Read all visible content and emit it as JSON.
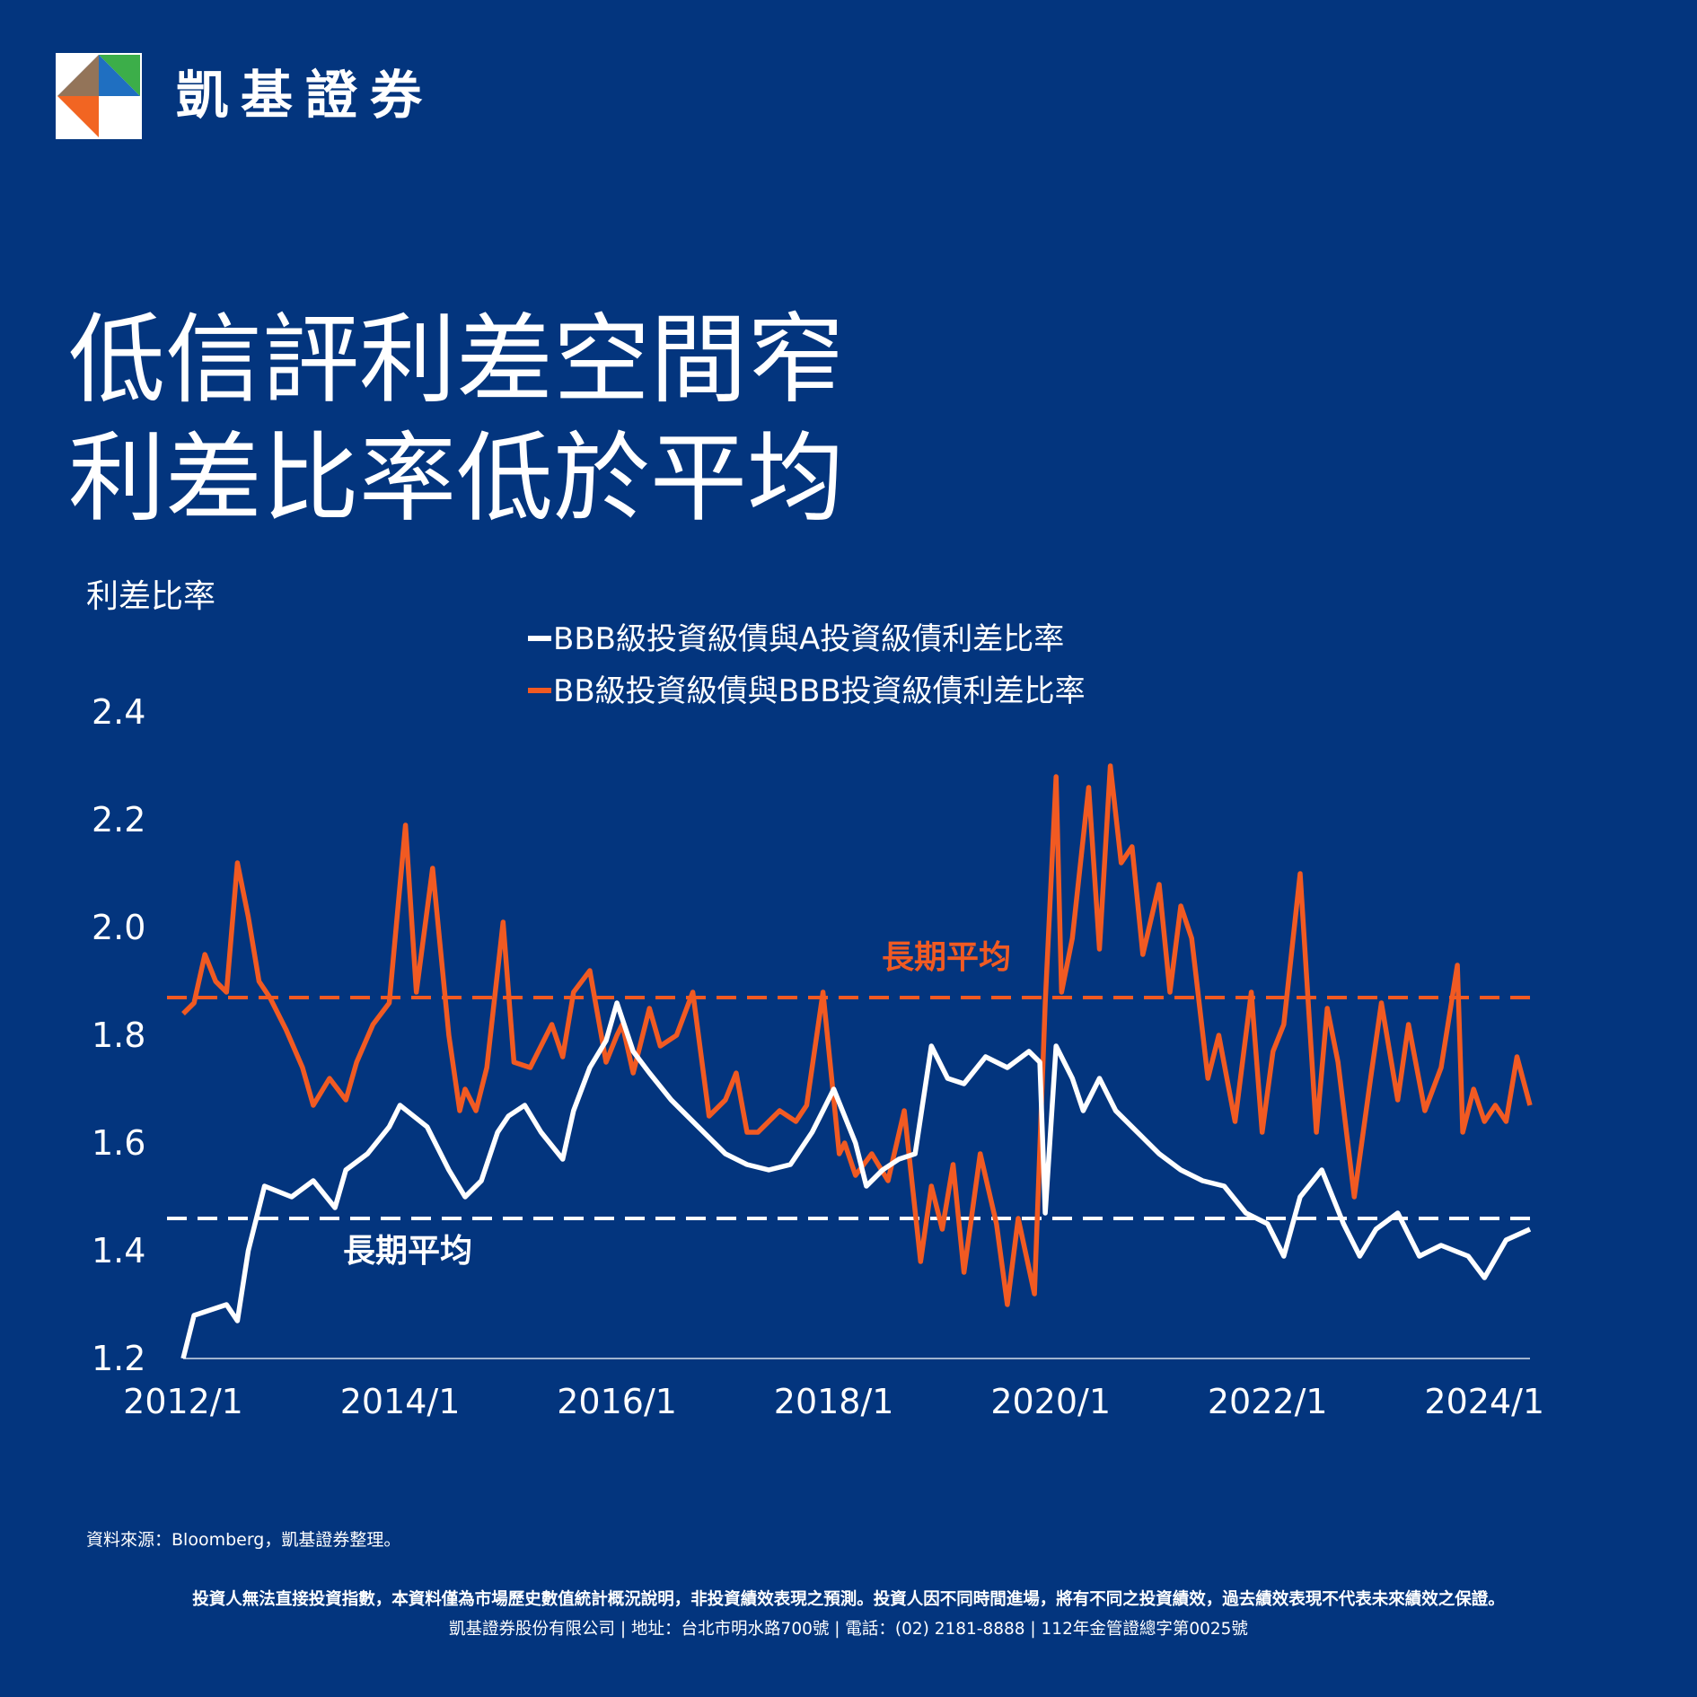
{
  "brand": {
    "name": "凱基證券",
    "logo_icon": "kgi-diamond-logo-icon",
    "colors": {
      "green": "#3cae49",
      "blue": "#1f6fc1",
      "orange": "#f26522",
      "white": "#ffffff"
    }
  },
  "headline": {
    "line1": "低信評利差空間窄",
    "line2": "利差比率低於平均"
  },
  "chart_data": {
    "type": "line",
    "ylabel": "利差比率",
    "ylim": [
      1.2,
      2.4
    ],
    "xlim": [
      2012.0,
      2024.42
    ],
    "y_ticks": [
      "1.2",
      "1.4",
      "1.6",
      "1.8",
      "2.0",
      "2.2",
      "2.4"
    ],
    "x_ticks": [
      "2012/1",
      "2014/1",
      "2016/1",
      "2018/1",
      "2020/1",
      "2022/1",
      "2024/1"
    ],
    "grid": false,
    "legend_position": "top-center",
    "background_color": "#03357e",
    "series": [
      {
        "name": "BBB級投資級債與A投資級債利差比率",
        "color": "#ffffff",
        "long_term_average": 1.46,
        "average_label": "長期平均",
        "x": [
          2012.0,
          2012.1,
          2012.25,
          2012.4,
          2012.5,
          2012.6,
          2012.75,
          2013.0,
          2013.2,
          2013.4,
          2013.5,
          2013.7,
          2013.9,
          2014.0,
          2014.25,
          2014.45,
          2014.6,
          2014.75,
          2014.9,
          2015.0,
          2015.15,
          2015.3,
          2015.5,
          2015.6,
          2015.75,
          2015.9,
          2016.0,
          2016.15,
          2016.3,
          2016.5,
          2016.7,
          2016.9,
          2017.0,
          2017.2,
          2017.4,
          2017.6,
          2017.8,
          2017.9,
          2018.0,
          2018.2,
          2018.3,
          2018.45,
          2018.6,
          2018.75,
          2018.9,
          2019.05,
          2019.2,
          2019.4,
          2019.6,
          2019.8,
          2019.9,
          2019.95,
          2020.05,
          2020.2,
          2020.3,
          2020.45,
          2020.6,
          2020.8,
          2021.0,
          2021.2,
          2021.4,
          2021.6,
          2021.8,
          2022.0,
          2022.15,
          2022.3,
          2022.5,
          2022.7,
          2022.85,
          2023.0,
          2023.2,
          2023.4,
          2023.6,
          2023.85,
          2024.0,
          2024.2,
          2024.42
        ],
        "values": [
          1.2,
          1.28,
          1.29,
          1.3,
          1.27,
          1.4,
          1.52,
          1.5,
          1.53,
          1.48,
          1.55,
          1.58,
          1.63,
          1.67,
          1.63,
          1.55,
          1.5,
          1.53,
          1.62,
          1.65,
          1.67,
          1.62,
          1.57,
          1.66,
          1.74,
          1.79,
          1.86,
          1.77,
          1.73,
          1.68,
          1.64,
          1.6,
          1.58,
          1.56,
          1.55,
          1.56,
          1.62,
          1.66,
          1.7,
          1.6,
          1.52,
          1.55,
          1.57,
          1.58,
          1.78,
          1.72,
          1.71,
          1.76,
          1.74,
          1.77,
          1.75,
          1.47,
          1.78,
          1.72,
          1.66,
          1.72,
          1.66,
          1.62,
          1.58,
          1.55,
          1.53,
          1.52,
          1.47,
          1.45,
          1.39,
          1.5,
          1.55,
          1.45,
          1.39,
          1.44,
          1.47,
          1.39,
          1.41,
          1.39,
          1.35,
          1.42,
          1.44
        ]
      },
      {
        "name": "BB級投資級債與BBB投資級債利差比率",
        "color": "#f15a22",
        "long_term_average": 1.87,
        "average_label": "長期平均",
        "x": [
          2012.0,
          2012.1,
          2012.2,
          2012.3,
          2012.4,
          2012.5,
          2012.6,
          2012.7,
          2012.8,
          2012.95,
          2013.1,
          2013.2,
          2013.35,
          2013.5,
          2013.6,
          2013.75,
          2013.9,
          2014.05,
          2014.15,
          2014.3,
          2014.45,
          2014.55,
          2014.6,
          2014.7,
          2014.8,
          2014.95,
          2015.05,
          2015.2,
          2015.4,
          2015.5,
          2015.6,
          2015.75,
          2015.9,
          2016.0,
          2016.05,
          2016.15,
          2016.3,
          2016.4,
          2016.55,
          2016.7,
          2016.85,
          2017.0,
          2017.1,
          2017.2,
          2017.3,
          2017.5,
          2017.65,
          2017.75,
          2017.9,
          2018.05,
          2018.1,
          2018.2,
          2018.35,
          2018.5,
          2018.65,
          2018.8,
          2018.9,
          2019.0,
          2019.1,
          2019.2,
          2019.35,
          2019.5,
          2019.6,
          2019.7,
          2019.85,
          2019.95,
          2020.05,
          2020.1,
          2020.2,
          2020.35,
          2020.45,
          2020.55,
          2020.65,
          2020.75,
          2020.85,
          2021.0,
          2021.1,
          2021.2,
          2021.3,
          2021.45,
          2021.55,
          2021.7,
          2021.85,
          2021.95,
          2022.05,
          2022.15,
          2022.3,
          2022.45,
          2022.55,
          2022.65,
          2022.8,
          2022.95,
          2023.05,
          2023.2,
          2023.3,
          2023.45,
          2023.6,
          2023.75,
          2023.8,
          2023.9,
          2024.0,
          2024.1,
          2024.2,
          2024.3,
          2024.42
        ],
        "values": [
          1.84,
          1.86,
          1.95,
          1.9,
          1.88,
          2.12,
          2.02,
          1.9,
          1.87,
          1.81,
          1.74,
          1.67,
          1.72,
          1.68,
          1.75,
          1.82,
          1.86,
          2.19,
          1.88,
          2.11,
          1.8,
          1.66,
          1.7,
          1.66,
          1.74,
          2.01,
          1.75,
          1.74,
          1.82,
          1.76,
          1.88,
          1.92,
          1.75,
          1.8,
          1.82,
          1.73,
          1.85,
          1.78,
          1.8,
          1.88,
          1.65,
          1.68,
          1.73,
          1.62,
          1.62,
          1.66,
          1.64,
          1.67,
          1.88,
          1.58,
          1.6,
          1.54,
          1.58,
          1.53,
          1.66,
          1.38,
          1.52,
          1.44,
          1.56,
          1.36,
          1.58,
          1.45,
          1.3,
          1.46,
          1.32,
          1.86,
          2.28,
          1.88,
          1.98,
          2.26,
          1.96,
          2.3,
          2.12,
          2.15,
          1.95,
          2.08,
          1.88,
          2.04,
          1.98,
          1.72,
          1.8,
          1.64,
          1.88,
          1.62,
          1.77,
          1.82,
          2.1,
          1.62,
          1.85,
          1.75,
          1.5,
          1.72,
          1.86,
          1.68,
          1.82,
          1.66,
          1.74,
          1.93,
          1.62,
          1.7,
          1.64,
          1.67,
          1.64,
          1.76,
          1.67
        ]
      }
    ]
  },
  "footer": {
    "source": "資料來源：Bloomberg，凱基證券整理。",
    "disclaimer": "投資人無法直接投資指數，本資料僅為市場歷史數值統計概況說明，非投資績效表現之預測。投資人因不同時間進場，將有不同之投資績效，過去績效表現不代表未來績效之保證。",
    "company_info": "凱基證券股份有限公司 | 地址：台北市明水路700號 | 電話：(02) 2181-8888 | 112年金管證總字第0025號"
  }
}
